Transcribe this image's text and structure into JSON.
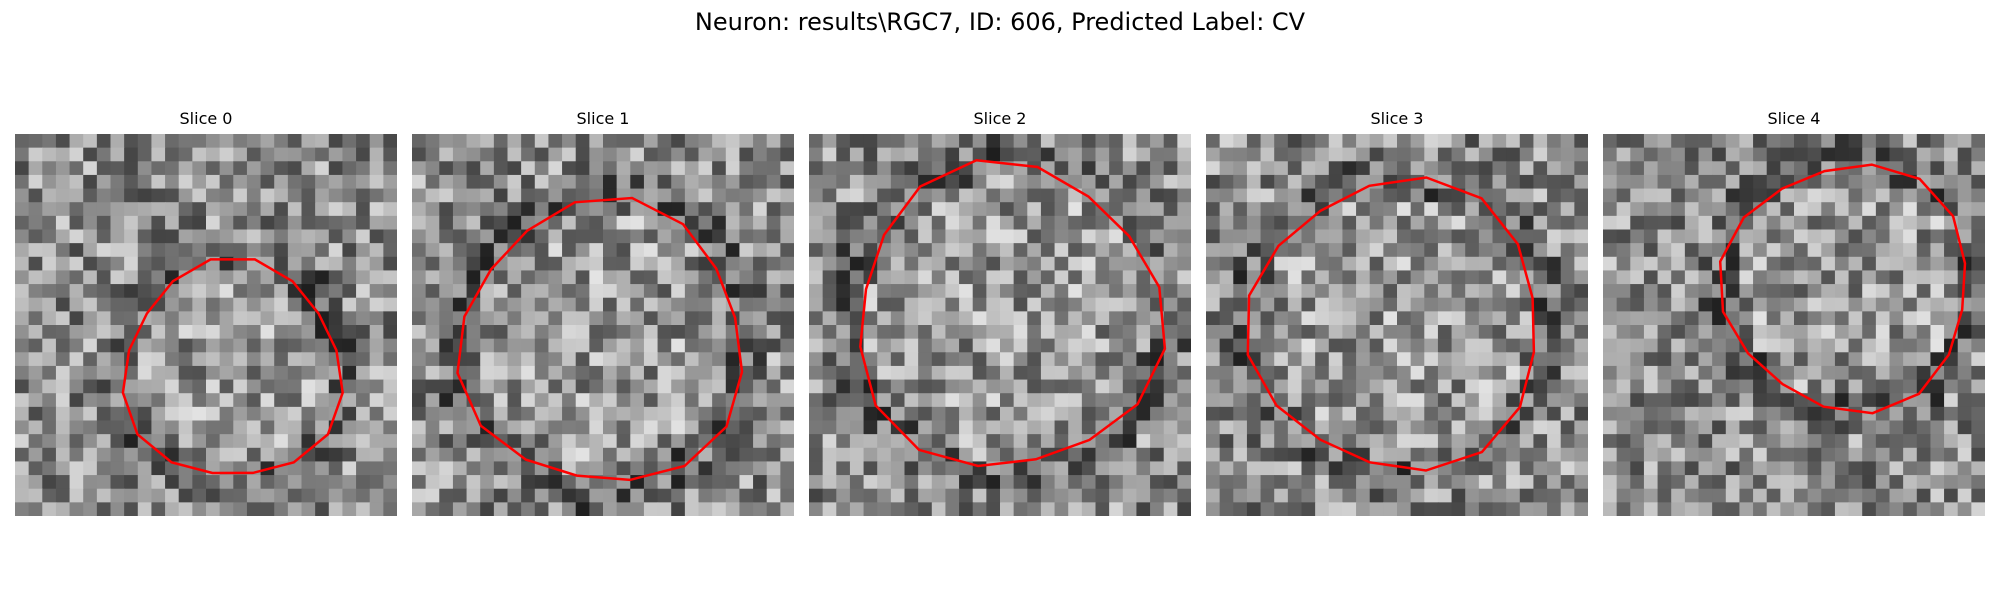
{
  "figure": {
    "suptitle": "Neuron: results\\RGC7, ID: 606, Predicted Label: CV"
  },
  "contour_color": "#ff0000",
  "panels": [
    {
      "title": "Slice 0",
      "grid_size": 28,
      "seed": 11,
      "contour_radius": 0.3,
      "contour_center": [
        0.57,
        0.62
      ]
    },
    {
      "title": "Slice 1",
      "grid_size": 28,
      "seed": 23,
      "contour_radius": 0.39,
      "contour_center": [
        0.5,
        0.55
      ]
    },
    {
      "title": "Slice 2",
      "grid_size": 28,
      "seed": 37,
      "contour_radius": 0.42,
      "contour_center": [
        0.52,
        0.48
      ]
    },
    {
      "title": "Slice 3",
      "grid_size": 28,
      "seed": 41,
      "contour_radius": 0.4,
      "contour_center": [
        0.5,
        0.5
      ]
    },
    {
      "title": "Slice 4",
      "grid_size": 28,
      "seed": 53,
      "contour_radius": 0.34,
      "contour_center": [
        0.64,
        0.4
      ]
    }
  ]
}
